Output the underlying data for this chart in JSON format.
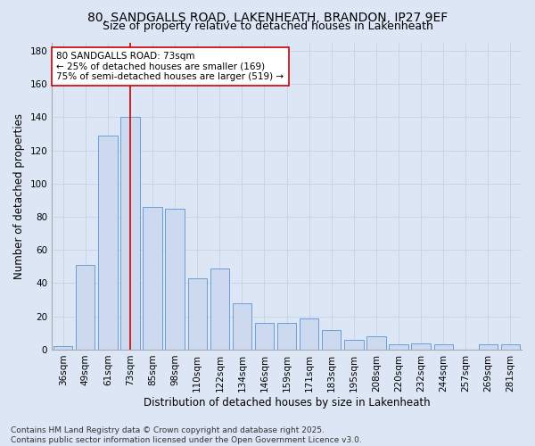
{
  "title": "80, SANDGALLS ROAD, LAKENHEATH, BRANDON, IP27 9EF",
  "subtitle": "Size of property relative to detached houses in Lakenheath",
  "xlabel": "Distribution of detached houses by size in Lakenheath",
  "ylabel": "Number of detached properties",
  "categories": [
    "36sqm",
    "49sqm",
    "61sqm",
    "73sqm",
    "85sqm",
    "98sqm",
    "110sqm",
    "122sqm",
    "134sqm",
    "146sqm",
    "159sqm",
    "171sqm",
    "183sqm",
    "195sqm",
    "208sqm",
    "220sqm",
    "232sqm",
    "244sqm",
    "257sqm",
    "269sqm",
    "281sqm"
  ],
  "values": [
    2,
    51,
    129,
    140,
    86,
    85,
    43,
    49,
    28,
    16,
    16,
    19,
    12,
    6,
    8,
    3,
    4,
    3,
    0,
    3,
    3
  ],
  "bar_color": "#ccd9ee",
  "bar_edge_color": "#6a9fd8",
  "grid_color": "#c8d4e8",
  "background_color": "#dce6f5",
  "plot_bg_color": "#dce6f5",
  "vline_x_index": 3,
  "vline_color": "#cc0000",
  "annotation_line1": "80 SANDGALLS ROAD: 73sqm",
  "annotation_line2": "← 25% of detached houses are smaller (169)",
  "annotation_line3": "75% of semi-detached houses are larger (519) →",
  "annotation_box_color": "#ffffff",
  "annotation_box_edge_color": "#cc0000",
  "ylim": [
    0,
    185
  ],
  "yticks": [
    0,
    20,
    40,
    60,
    80,
    100,
    120,
    140,
    160,
    180
  ],
  "footer_line1": "Contains HM Land Registry data © Crown copyright and database right 2025.",
  "footer_line2": "Contains public sector information licensed under the Open Government Licence v3.0.",
  "title_fontsize": 10,
  "subtitle_fontsize": 9,
  "xlabel_fontsize": 8.5,
  "ylabel_fontsize": 8.5,
  "tick_fontsize": 7.5,
  "annotation_fontsize": 7.5,
  "footer_fontsize": 6.5
}
